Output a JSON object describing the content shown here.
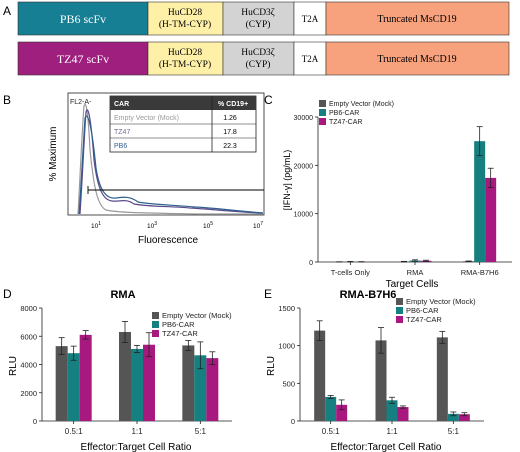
{
  "panel_letters": {
    "a": "A",
    "b": "B",
    "c": "C",
    "d": "D",
    "e": "E"
  },
  "constructs": {
    "pb6": {
      "scfv": "PB6 scFv",
      "cd28_l1": "HuCD28",
      "cd28_l2": "(H-TM-CYP)",
      "cd3_l1": "HuCD3ζ",
      "cd3_l2": "(CYP)",
      "t2a": "T2A",
      "msc": "Truncated MsCD19"
    },
    "tz47": {
      "scfv": "TZ47 scFv",
      "cd28_l1": "HuCD28",
      "cd28_l2": "(H-TM-CYP)",
      "cd3_l1": "HuCD3ζ",
      "cd3_l2": "(CYP)",
      "t2a": "T2A",
      "msc": "Truncated MsCD19"
    },
    "colors": {
      "pb6": "#167f94",
      "tz47": "#9e1f7e",
      "cd28": "#fff0a8",
      "cd3": "#d3d3d3",
      "t2a": "#ffffff",
      "msc": "#f8a27d"
    }
  },
  "flow": {
    "gate_label": "FL2-A-",
    "table_header": {
      "col1": "CAR",
      "col2": "% CD19+"
    },
    "table_rows": [
      {
        "name": "Empty Vector (Mock)",
        "value": "1.26"
      },
      {
        "name": "TZ47",
        "value": "17.8"
      },
      {
        "name": "PB6",
        "value": "22.3"
      }
    ],
    "ylabel": "% Maximum",
    "xlabel": "Fluorescence",
    "x_ticks": [
      "10^1",
      "10^3",
      "10^5",
      "10^7"
    ],
    "colors": {
      "mock": "#9a9a9a",
      "tz47": "#5a4a8a",
      "pb6": "#2f5f8f"
    }
  },
  "chart_data": [
    {
      "id": "C",
      "type": "bar",
      "title": "",
      "xlabel": "Target Cells",
      "ylabel": "[IFN-γ] (pg/mL)",
      "categories": [
        "T-cells Only",
        "RMA",
        "RMA-B7H6"
      ],
      "ylim": [
        0,
        30000
      ],
      "yticks": [
        "0",
        "10000",
        "20000",
        "30000"
      ],
      "legend": "top-left",
      "series": [
        {
          "name": "Empty Vector (Mock)",
          "color": "#555555",
          "values": [
            30,
            80,
            150
          ],
          "errors": [
            20,
            50,
            60
          ]
        },
        {
          "name": "PB6-CAR",
          "color": "#167f7f",
          "values": [
            80,
            300,
            25000
          ],
          "errors": [
            30,
            150,
            3000
          ]
        },
        {
          "name": "TZ47-CAR",
          "color": "#a8197f",
          "values": [
            50,
            250,
            17400
          ],
          "errors": [
            20,
            120,
            2000
          ]
        }
      ]
    },
    {
      "id": "D",
      "type": "bar",
      "title": "RMA",
      "xlabel": "Effector:Target Cell Ratio",
      "ylabel": "RLU",
      "categories": [
        "0.5:1",
        "1:1",
        "5:1"
      ],
      "ylim": [
        0,
        8000
      ],
      "yticks": [
        "0",
        "2000",
        "4000",
        "6000",
        "8000"
      ],
      "legend": "top-right",
      "series": [
        {
          "name": "Empty Vector (Mock)",
          "color": "#555555",
          "values": [
            5300,
            6300,
            5350
          ],
          "errors": [
            600,
            750,
            350
          ]
        },
        {
          "name": "PB6-CAR",
          "color": "#167f7f",
          "values": [
            4800,
            5100,
            4650
          ],
          "errors": [
            500,
            250,
            950
          ]
        },
        {
          "name": "TZ47-CAR",
          "color": "#a8197f",
          "values": [
            6100,
            5400,
            4450
          ],
          "errors": [
            300,
            850,
            450
          ]
        }
      ]
    },
    {
      "id": "E",
      "type": "bar",
      "title": "RMA-B7H6",
      "xlabel": "Effector:Target Cell Ratio",
      "ylabel": "RLU",
      "categories": [
        "0.5:1",
        "1:1",
        "5:1"
      ],
      "ylim": [
        0,
        1500
      ],
      "yticks": [
        "0",
        "500",
        "1000",
        "1500"
      ],
      "legend": "top-right",
      "series": [
        {
          "name": "Empty Vector (Mock)",
          "color": "#555555",
          "values": [
            1200,
            1070,
            1110
          ],
          "errors": [
            130,
            170,
            80
          ]
        },
        {
          "name": "PB6-CAR",
          "color": "#167f7f",
          "values": [
            320,
            275,
            95
          ],
          "errors": [
            20,
            40,
            25
          ]
        },
        {
          "name": "TZ47-CAR",
          "color": "#a8197f",
          "values": [
            215,
            185,
            90
          ],
          "errors": [
            65,
            15,
            20
          ]
        }
      ]
    }
  ]
}
